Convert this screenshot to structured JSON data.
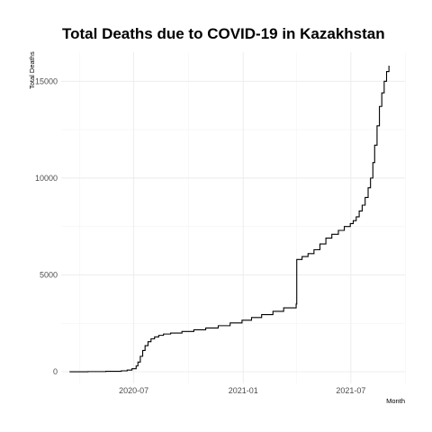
{
  "chart_data": {
    "type": "line",
    "title": "Total Deaths due to COVID-19 in Kazakhstan",
    "xlabel": "Month",
    "ylabel": "Total Deaths",
    "x_type": "date",
    "xlim": [
      "2020-03-01",
      "2021-09-30"
    ],
    "ylim": [
      -600,
      16500
    ],
    "x_ticks": [
      {
        "date": "2020-07-01",
        "label": "2020-07"
      },
      {
        "date": "2021-01-01",
        "label": "2021-01"
      },
      {
        "date": "2021-07-01",
        "label": "2021-07"
      }
    ],
    "x_minor_ticks": [
      "2020-04-01",
      "2020-10-01",
      "2021-04-01",
      "2021-10-01"
    ],
    "y_ticks": [
      0,
      5000,
      10000,
      15000
    ],
    "y_minor_ticks": [
      2500,
      7500,
      12500
    ],
    "grid": true,
    "step": true,
    "series": [
      {
        "color": "#000000",
        "points": [
          [
            "2020-03-15",
            0
          ],
          [
            "2020-04-15",
            10
          ],
          [
            "2020-05-15",
            25
          ],
          [
            "2020-06-10",
            50
          ],
          [
            "2020-06-20",
            90
          ],
          [
            "2020-06-28",
            160
          ],
          [
            "2020-07-05",
            300
          ],
          [
            "2020-07-08",
            500
          ],
          [
            "2020-07-12",
            800
          ],
          [
            "2020-07-16",
            1100
          ],
          [
            "2020-07-20",
            1350
          ],
          [
            "2020-07-25",
            1550
          ],
          [
            "2020-07-30",
            1700
          ],
          [
            "2020-08-05",
            1800
          ],
          [
            "2020-08-12",
            1880
          ],
          [
            "2020-08-20",
            1950
          ],
          [
            "2020-09-01",
            2000
          ],
          [
            "2020-09-20",
            2080
          ],
          [
            "2020-10-10",
            2170
          ],
          [
            "2020-10-30",
            2260
          ],
          [
            "2020-11-20",
            2380
          ],
          [
            "2020-12-10",
            2520
          ],
          [
            "2020-12-30",
            2660
          ],
          [
            "2021-01-15",
            2800
          ],
          [
            "2021-02-01",
            2950
          ],
          [
            "2021-02-20",
            3120
          ],
          [
            "2021-03-10",
            3300
          ],
          [
            "2021-03-31",
            3500
          ],
          [
            "2021-04-01",
            5800
          ],
          [
            "2021-04-10",
            5950
          ],
          [
            "2021-04-20",
            6100
          ],
          [
            "2021-04-30",
            6300
          ],
          [
            "2021-05-10",
            6600
          ],
          [
            "2021-05-20",
            6900
          ],
          [
            "2021-05-30",
            7100
          ],
          [
            "2021-06-10",
            7300
          ],
          [
            "2021-06-20",
            7500
          ],
          [
            "2021-06-30",
            7650
          ],
          [
            "2021-07-05",
            7800
          ],
          [
            "2021-07-10",
            8000
          ],
          [
            "2021-07-15",
            8300
          ],
          [
            "2021-07-20",
            8600
          ],
          [
            "2021-07-25",
            9000
          ],
          [
            "2021-07-30",
            9500
          ],
          [
            "2021-08-03",
            10000
          ],
          [
            "2021-08-07",
            10800
          ],
          [
            "2021-08-10",
            11700
          ],
          [
            "2021-08-14",
            12700
          ],
          [
            "2021-08-18",
            13700
          ],
          [
            "2021-08-22",
            14400
          ],
          [
            "2021-08-26",
            15000
          ],
          [
            "2021-08-30",
            15500
          ],
          [
            "2021-09-03",
            15800
          ]
        ]
      }
    ]
  }
}
